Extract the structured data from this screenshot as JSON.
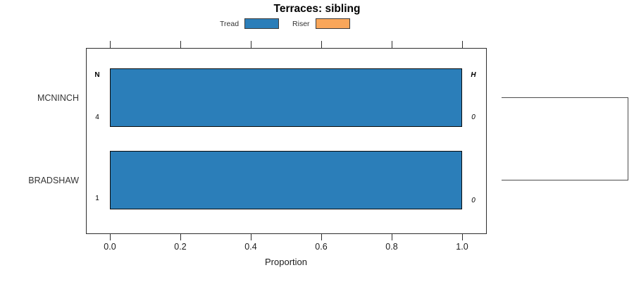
{
  "figure": {
    "title": "Terraces: sibling",
    "xlabel": "Proportion"
  },
  "legend": {
    "items": [
      {
        "label": "Tread",
        "color": "#2b7eb9"
      },
      {
        "label": "Riser",
        "color": "#f9a65a"
      }
    ]
  },
  "axis": {
    "ticks": [
      "0.0",
      "0.2",
      "0.4",
      "0.6",
      "0.8",
      "1.0"
    ]
  },
  "rows": [
    {
      "label": "MCNINCH",
      "left_header": "N",
      "left_value": "4",
      "right_header": "H",
      "right_value": "0",
      "value": 1.0
    },
    {
      "label": "BRADSHAW",
      "left_value": "1",
      "right_value": "0",
      "value": 1.0
    }
  ],
  "chart_data": {
    "type": "bar",
    "orientation": "horizontal",
    "title": "Terraces: sibling",
    "categories": [
      "MCNINCH",
      "BRADSHAW"
    ],
    "series": [
      {
        "name": "Tread",
        "color": "#2b7eb9",
        "values": [
          1.0,
          1.0
        ]
      },
      {
        "name": "Riser",
        "color": "#f9a65a",
        "values": [
          0.0,
          0.0
        ]
      }
    ],
    "xlabel": "Proportion",
    "ylabel": "",
    "xlim": [
      0.0,
      1.05
    ],
    "x_ticks": [
      0.0,
      0.2,
      0.4,
      0.6,
      0.8,
      1.0
    ],
    "grid": false,
    "legend_position": "top-center",
    "annotations": {
      "left_header": "N",
      "right_header": "H",
      "per_category": [
        {
          "category": "MCNINCH",
          "N": 4,
          "H": 0
        },
        {
          "category": "BRADSHAW",
          "N": 1,
          "H": 0
        }
      ]
    },
    "extras": "right-margin cluster bracket joining the two category rows"
  }
}
